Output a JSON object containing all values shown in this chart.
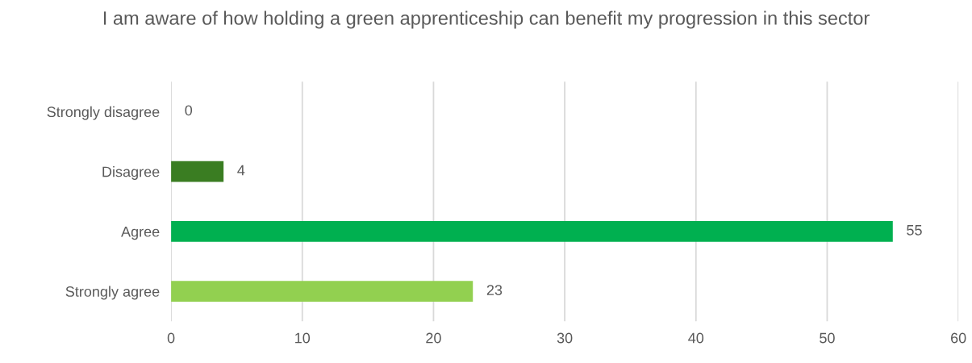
{
  "chart_data": {
    "type": "bar",
    "orientation": "horizontal",
    "title": "I am aware of how holding a green apprenticeship can benefit my progression in this sector",
    "categories": [
      "Strongly disagree",
      "Disagree",
      "Agree",
      "Strongly agree"
    ],
    "values": [
      0,
      4,
      55,
      23
    ],
    "colors": [
      "#1f4e1f",
      "#3a7d22",
      "#00b050",
      "#92d050"
    ],
    "xlim": [
      0,
      60
    ],
    "xticks": [
      0,
      10,
      20,
      30,
      40,
      50,
      60
    ],
    "grid": "x",
    "data_labels": true
  }
}
